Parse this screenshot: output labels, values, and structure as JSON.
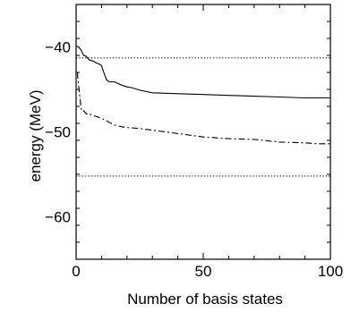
{
  "chart_data": {
    "type": "line",
    "title": "",
    "xlabel": "Number of basis states",
    "ylabel": "energy (MeV)",
    "xlim": [
      0,
      100
    ],
    "ylim": [
      -65,
      -35
    ],
    "x_ticks": [
      0,
      50,
      100
    ],
    "y_ticks": [
      -40,
      -50,
      -60
    ],
    "x_tick_labels": [
      "0",
      "50",
      "100"
    ],
    "y_tick_labels": [
      "−40",
      "−50",
      "−60"
    ],
    "grid": false,
    "legend": "none",
    "series": [
      {
        "style": "solid",
        "x": [
          0,
          1,
          2,
          3,
          4,
          5,
          6,
          7,
          8,
          9,
          10,
          11,
          12,
          13,
          15,
          18,
          20,
          22,
          25,
          30,
          40,
          50,
          60,
          70,
          80,
          90,
          100
        ],
        "y": [
          -39.9,
          -40.0,
          -40.4,
          -41.0,
          -41.1,
          -41.5,
          -41.6,
          -41.7,
          -41.9,
          -42.0,
          -42.2,
          -43.1,
          -43.9,
          -44.1,
          -44.1,
          -44.5,
          -44.7,
          -44.8,
          -45.1,
          -45.4,
          -45.5,
          -45.6,
          -45.7,
          -45.8,
          -45.9,
          -46.0,
          -46.0
        ]
      },
      {
        "style": "dashdot",
        "x": [
          0.5,
          1,
          1.5,
          2,
          2.5,
          3,
          4,
          5,
          6,
          8,
          10,
          12,
          15,
          18,
          20,
          25,
          30,
          40,
          50,
          60,
          70,
          80,
          90,
          95,
          100
        ],
        "y": [
          -43.0,
          -44.5,
          -46.0,
          -47.3,
          -47.6,
          -47.5,
          -47.9,
          -47.8,
          -48.0,
          -48.2,
          -48.4,
          -48.7,
          -49.2,
          -49.4,
          -49.5,
          -49.6,
          -49.8,
          -50.2,
          -50.6,
          -50.8,
          -50.9,
          -51.2,
          -51.3,
          -51.4,
          -51.4
        ]
      },
      {
        "style": "dotted",
        "x": [
          0,
          100
        ],
        "y": [
          -41.3,
          -41.3
        ]
      },
      {
        "style": "dotted",
        "x": [
          0,
          100
        ],
        "y": [
          -55.2,
          -55.2
        ]
      }
    ]
  }
}
